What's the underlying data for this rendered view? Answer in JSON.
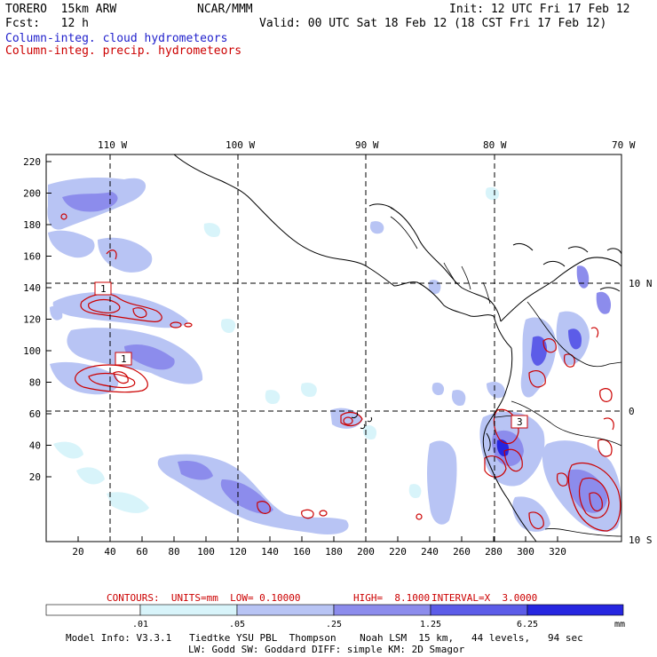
{
  "header": {
    "model": "TORERO  15km ARW",
    "org": "NCAR/MMM",
    "init": "Init: 12 UTC Fri 17 Feb 12",
    "fcst": "Fcst:   12 h",
    "valid": "Valid: 00 UTC Sat 18 Feb 12 (18 CST Fri 17 Feb 12)",
    "field_cloud": "Column-integ. cloud hydrometeors",
    "field_precip": "Column-integ. precip. hydrometeors"
  },
  "map": {
    "lon_labels": [
      "110 W",
      "100 W",
      "90 W",
      "80 W",
      "70 W"
    ],
    "lat_labels": [
      "10 N",
      "0",
      "10 S"
    ],
    "y_ticks": [
      "220",
      "200",
      "180",
      "160",
      "140",
      "120",
      "100",
      "80",
      "60",
      "40",
      "20"
    ],
    "x_ticks": [
      "20",
      "40",
      "60",
      "80",
      "100",
      "120",
      "140",
      "160",
      "180",
      "200",
      "220",
      "240",
      "260",
      "280",
      "300",
      "320"
    ],
    "boxes": [
      {
        "label": "1",
        "x": 35,
        "y": 148
      },
      {
        "label": "1",
        "x": 45,
        "y": 105
      },
      {
        "label": "3",
        "x": 272,
        "y": 67
      }
    ]
  },
  "contours_caption": {
    "units": "CONTOURS:  UNITS=mm  LOW= 0.10000",
    "high": "HIGH=  8.1000",
    "interval": "INTERVAL=X  3.0000"
  },
  "colorbar": {
    "labels": [
      ".01",
      ".05",
      ".25",
      "1.25",
      "6.25"
    ],
    "unit": "mm",
    "colors": [
      "#ffffff",
      "#d8f4fa",
      "#b8c4f4",
      "#8c8cec",
      "#5c5ce8",
      "#2626e0"
    ]
  },
  "footer": {
    "line1": "Model Info: V3.3.1   Tiedtke YSU PBL  Thompson    Noah LSM  15 km,   44 levels,   94 sec",
    "line2": "LW: Godd SW: Goddard DIFF: simple KM: 2D Smagor"
  }
}
